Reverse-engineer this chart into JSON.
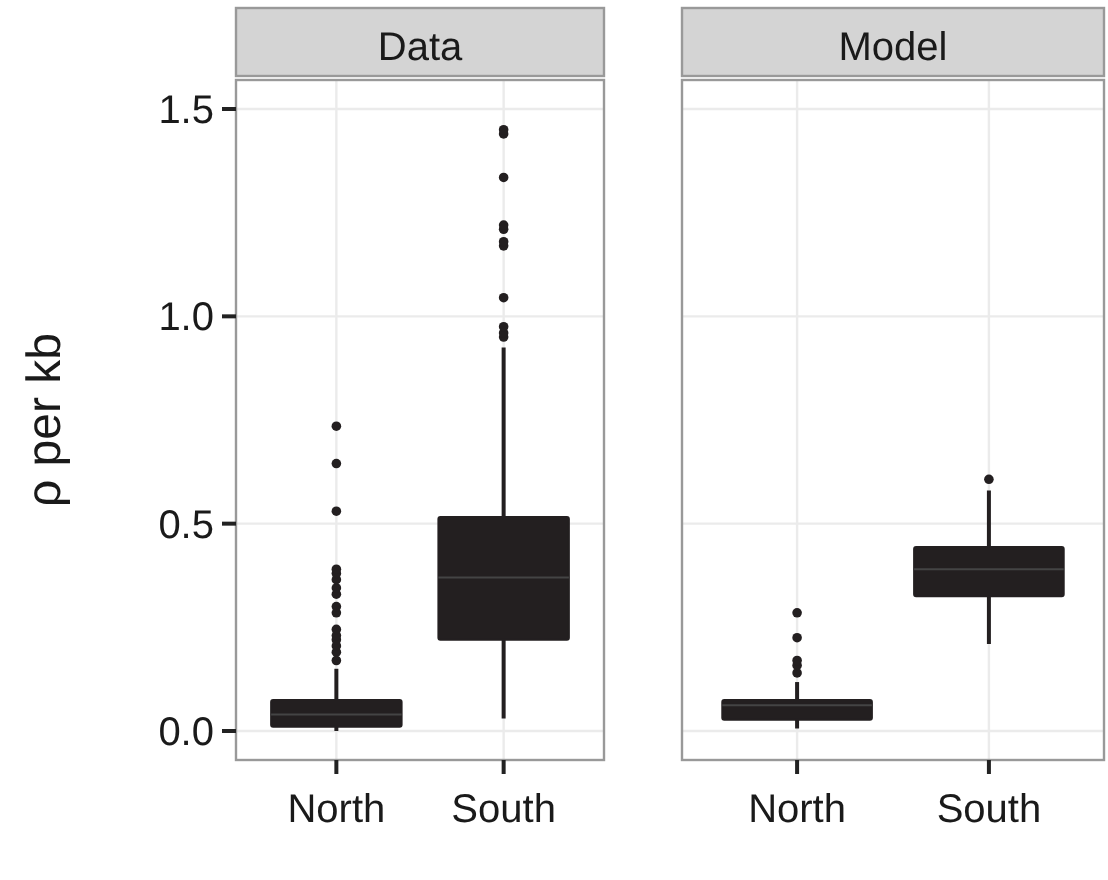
{
  "chart_data": [
    {
      "type": "box",
      "title": "Data",
      "ylabel": "ρ per kb",
      "categories": [
        "North",
        "South"
      ],
      "ylim": [
        -0.07,
        1.57
      ],
      "yticks": [
        {
          "value": 0,
          "label": "0.0"
        },
        0.5,
        {
          "value": 1,
          "label": "1.0"
        },
        1.5
      ],
      "grid": true,
      "color": "#231f20",
      "boxes": [
        {
          "low": 0,
          "q1": 0.01,
          "median": 0.04,
          "q3": 0.075,
          "high": 0.15,
          "outliers": [
            0.17,
            0.19,
            0.205,
            0.22,
            0.23,
            0.245,
            0.285,
            0.3,
            0.33,
            0.345,
            0.365,
            0.38,
            0.39,
            0.53,
            0.645,
            0.735
          ]
        },
        {
          "low": 0.03,
          "q1": 0.22,
          "median": 0.37,
          "q3": 0.516,
          "high": 0.925,
          "outliers": [
            0.95,
            0.96,
            0.975,
            1.045,
            1.17,
            1.18,
            1.21,
            1.22,
            1.335,
            1.44,
            1.45
          ]
        }
      ]
    },
    {
      "type": "box",
      "title": "Model",
      "categories": [
        "North",
        "South"
      ],
      "ylim": [
        -0.07,
        1.57
      ],
      "yticks": [
        0,
        0.5,
        1,
        1.5
      ],
      "tick_labels": "x",
      "grid": true,
      "color": "#231f20",
      "boxes": [
        {
          "low": 0.006,
          "q1": 0.027,
          "median": 0.062,
          "q3": 0.075,
          "high": 0.118,
          "outliers": [
            0.14,
            0.158,
            0.17,
            0.225,
            0.285
          ]
        },
        {
          "low": 0.21,
          "q1": 0.325,
          "median": 0.39,
          "q3": 0.444,
          "high": 0.58,
          "outliers": [
            0.607
          ]
        }
      ]
    }
  ]
}
